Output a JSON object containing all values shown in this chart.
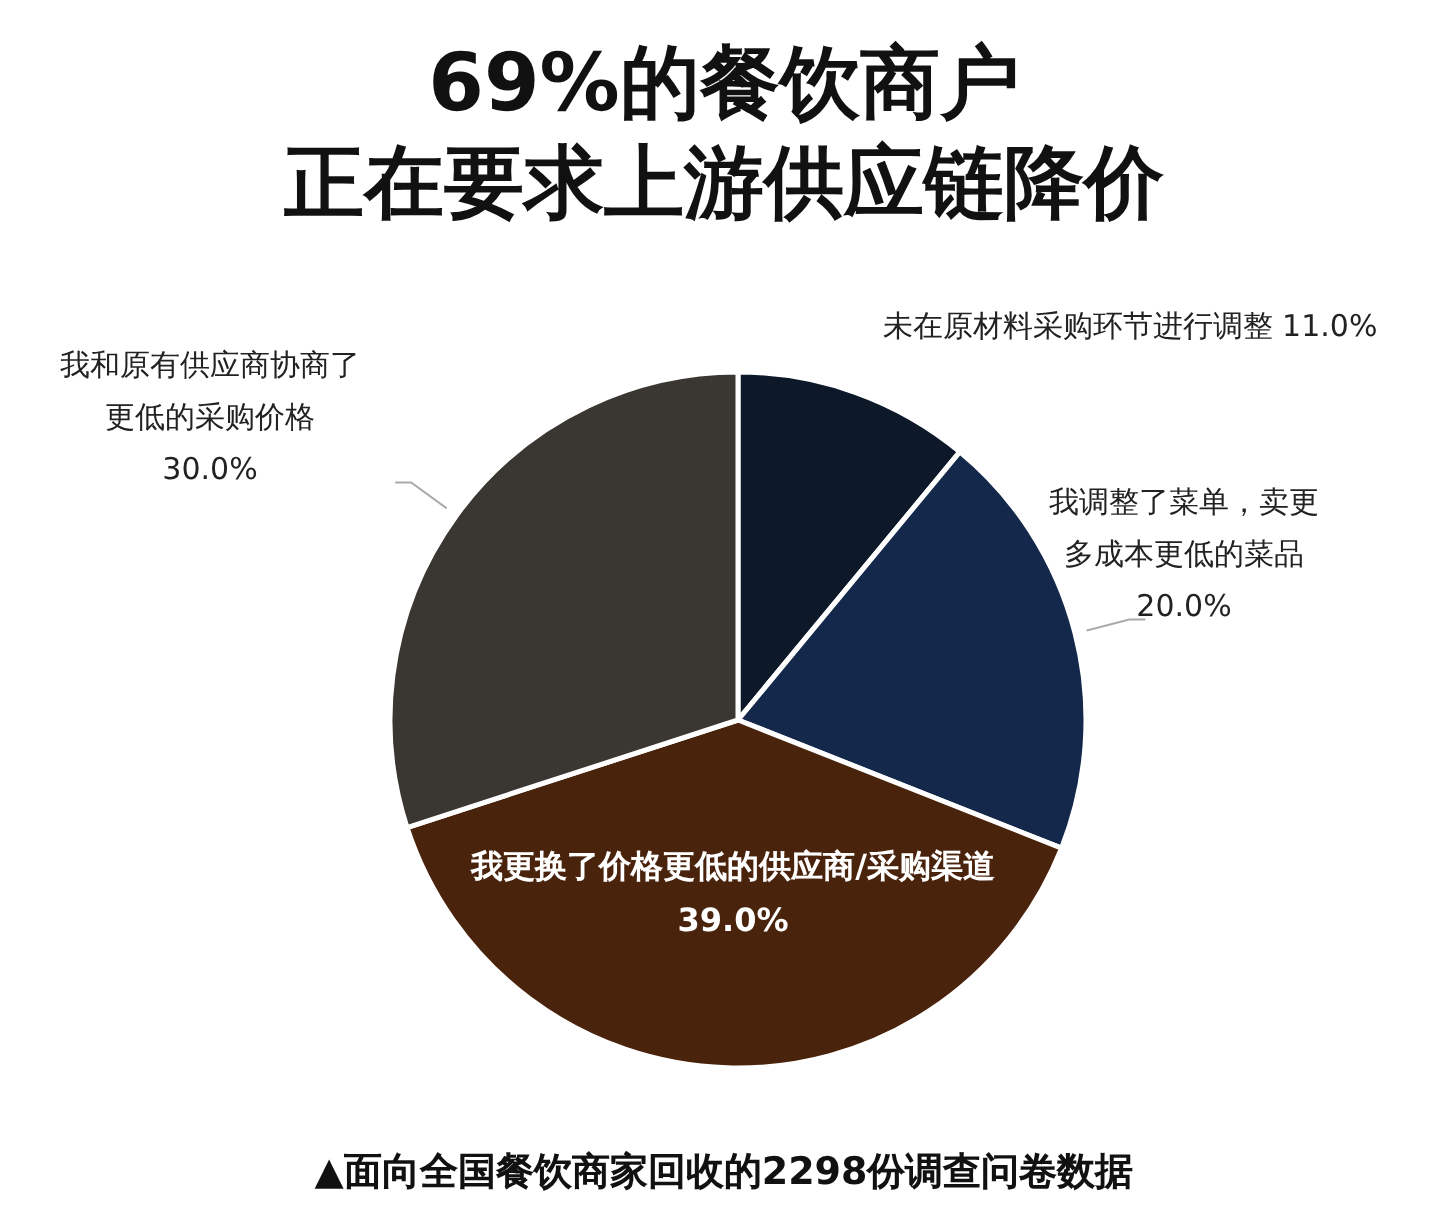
{
  "chart_data": {
    "type": "pie",
    "title": "69%的餐饮商户",
    "subtitle": "正在要求上游供应链降价",
    "categories": [
      "未在原材料采购环节进行调整",
      "我调整了菜单，卖更多成本更低的菜品",
      "我更换了价格更低的供应商/采购渠道",
      "我和原有供应商协商了更低的采购价格"
    ],
    "values": [
      11,
      20,
      39,
      30
    ],
    "value_labels": [
      "11.0%",
      "20.0%",
      "39.0%",
      "30.0%"
    ],
    "colors": [
      "#0d1829",
      "#13284a",
      "#4a230c",
      "#3a3631"
    ],
    "annotations": [
      "▲面向全国餐饮商家回收的2298份调查问卷数据"
    ]
  }
}
